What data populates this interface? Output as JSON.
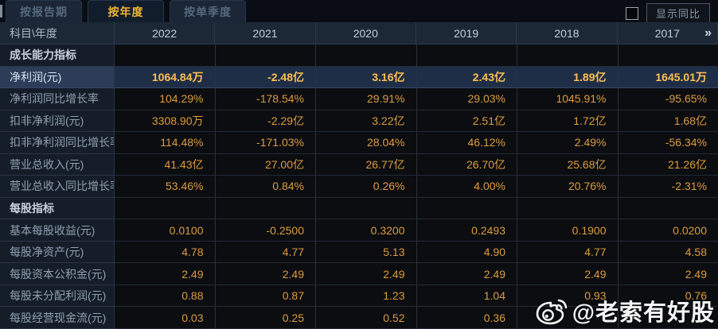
{
  "tabs": [
    {
      "label": "按报告期",
      "active": false
    },
    {
      "label": "按年度",
      "active": true
    },
    {
      "label": "按单季度",
      "active": false
    }
  ],
  "controls": {
    "show_yoy_label": "显示同比",
    "checkbox_checked": false
  },
  "table": {
    "corner_label": "科目\\年度",
    "years": [
      "2022",
      "2021",
      "2020",
      "2019",
      "2018",
      "2017"
    ],
    "more_icon": "»",
    "rows": [
      {
        "type": "section",
        "label": "成长能力指标",
        "values": [
          "",
          "",
          "",
          "",
          "",
          ""
        ]
      },
      {
        "type": "highlight",
        "label": "净利润(元)",
        "values": [
          "1064.84万",
          "-2.48亿",
          "3.16亿",
          "2.43亿",
          "1.89亿",
          "1645.01万"
        ]
      },
      {
        "type": "data",
        "label": "净利润同比增长率",
        "values": [
          "104.29%",
          "-178.54%",
          "29.91%",
          "29.03%",
          "1045.91%",
          "-95.65%"
        ]
      },
      {
        "type": "data",
        "label": "扣非净利润(元)",
        "values": [
          "3308.90万",
          "-2.29亿",
          "3.22亿",
          "2.51亿",
          "1.72亿",
          "1.68亿"
        ]
      },
      {
        "type": "data",
        "label": "扣非净利润同比增长率",
        "values": [
          "114.48%",
          "-171.03%",
          "28.04%",
          "46.12%",
          "2.49%",
          "-56.34%"
        ]
      },
      {
        "type": "data",
        "label": "营业总收入(元)",
        "values": [
          "41.43亿",
          "27.00亿",
          "26.77亿",
          "26.70亿",
          "25.68亿",
          "21.26亿"
        ]
      },
      {
        "type": "data",
        "label": "营业总收入同比增长率",
        "values": [
          "53.46%",
          "0.84%",
          "0.26%",
          "4.00%",
          "20.76%",
          "-2.31%"
        ]
      },
      {
        "type": "section",
        "label": "每股指标",
        "values": [
          "",
          "",
          "",
          "",
          "",
          ""
        ]
      },
      {
        "type": "data",
        "label": "基本每股收益(元)",
        "values": [
          "0.0100",
          "-0.2500",
          "0.3200",
          "0.2493",
          "0.1900",
          "0.0200"
        ]
      },
      {
        "type": "data",
        "label": "每股净资产(元)",
        "values": [
          "4.78",
          "4.77",
          "5.13",
          "4.90",
          "4.77",
          "4.58"
        ]
      },
      {
        "type": "data",
        "label": "每股资本公积金(元)",
        "values": [
          "2.49",
          "2.49",
          "2.49",
          "2.49",
          "2.49",
          "2.49"
        ]
      },
      {
        "type": "data",
        "label": "每股未分配利润(元)",
        "values": [
          "0.88",
          "0.87",
          "1.23",
          "1.04",
          "0.93",
          "0.76"
        ]
      },
      {
        "type": "data",
        "label": "每股经营现金流(元)",
        "values": [
          "0.03",
          "0.25",
          "0.52",
          "0.36",
          "",
          ""
        ]
      }
    ]
  },
  "watermark": {
    "text": "@老索有好股",
    "icon": "weibo-icon"
  },
  "colors": {
    "background": "#0a0e14",
    "header_bg": "#1d2836",
    "label_col_bg": "#151d29",
    "value_text": "#de9c40",
    "highlight_row_bg": "#1f2e47",
    "highlight_value_text": "#ffc04f",
    "active_tab_text": "#f2b438",
    "inactive_tab_text": "#56697e"
  }
}
